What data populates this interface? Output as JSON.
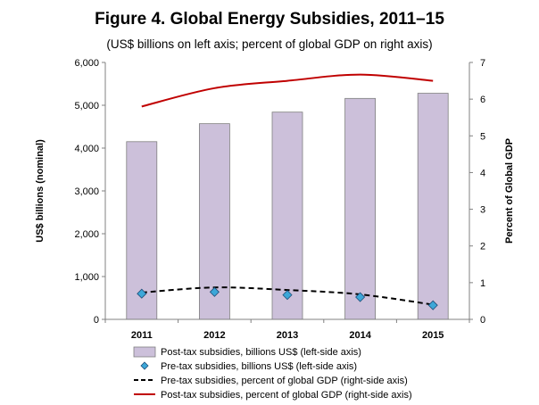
{
  "chart_data": {
    "type": "bar",
    "title": "Figure 4. Global Energy Subsidies, 2011–15",
    "subtitle": "(US$ billions on left axis; percent of global GDP on right axis)",
    "ylabel": "US$ billions (nominal)",
    "y2label": "Percent of Global GDP",
    "ylim": [
      0,
      6000
    ],
    "y2lim": [
      0,
      7
    ],
    "yticks": [
      "0",
      "1,000",
      "2,000",
      "3,000",
      "4,000",
      "5,000",
      "6,000"
    ],
    "y2ticks": [
      "0",
      "1",
      "2",
      "3",
      "4",
      "5",
      "6",
      "7"
    ],
    "categories": [
      "2011",
      "2012",
      "2013",
      "2014",
      "2015"
    ],
    "grid": false,
    "legend_position": "bottom",
    "colors": {
      "bar_fill": "#ccc0da",
      "bar_stroke": "#7f7f7f",
      "diamond_fill": "#3ca7d8",
      "pretax_line": "#000000",
      "posttax_line": "#c00000"
    },
    "series": [
      {
        "name": "Post-tax subsidies, billions US$ (left-side axis)",
        "type": "bar",
        "axis": "left",
        "values": [
          4150,
          4570,
          4840,
          5160,
          5280
        ]
      },
      {
        "name": "Pre-tax subsidies, billions US$ (left-side axis)",
        "type": "scatter",
        "axis": "left",
        "values": [
          600,
          640,
          570,
          520,
          330
        ]
      },
      {
        "name": "Pre-tax subsidies, percent of global GDP (right-side axis)",
        "type": "line",
        "style": "dashed",
        "axis": "right",
        "values": [
          0.73,
          0.87,
          0.8,
          0.68,
          0.4
        ]
      },
      {
        "name": "Post-tax subsidies, percent of global GDP (right-side axis)",
        "type": "line",
        "style": "solid",
        "axis": "right",
        "values": [
          5.8,
          6.3,
          6.5,
          6.67,
          6.5
        ]
      }
    ]
  }
}
